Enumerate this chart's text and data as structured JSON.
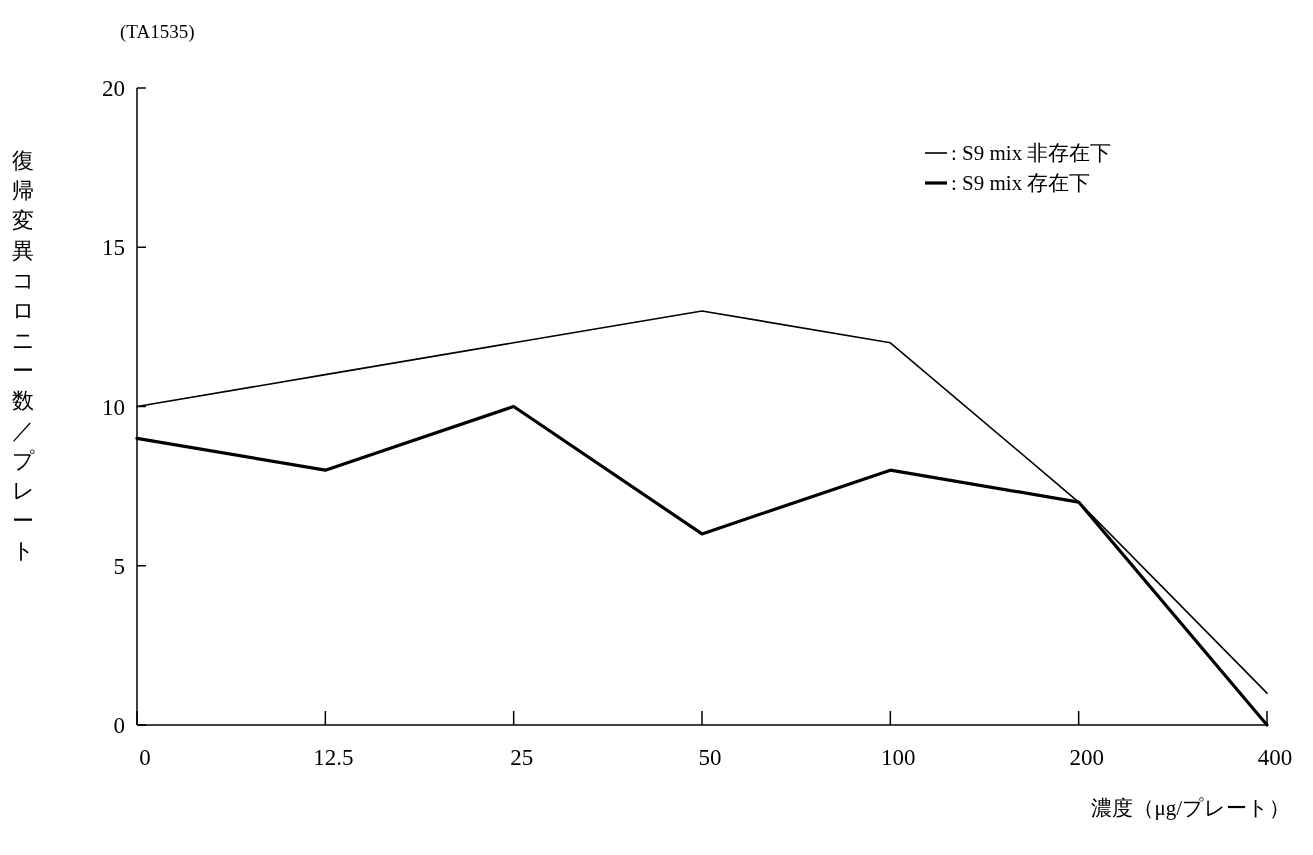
{
  "chart_data": {
    "type": "line",
    "title": "(TA1535)",
    "xlabel": "濃度（μg/プレート）",
    "ylabel": "復帰変異コロニー数／プレート",
    "categories": [
      "0",
      "12.5",
      "25",
      "50",
      "100",
      "200",
      "400"
    ],
    "ylim": [
      0,
      20
    ],
    "yticks": [
      0,
      5,
      10,
      15,
      20
    ],
    "legend": "top right",
    "series": [
      {
        "name": ": S9 mix 非存在下",
        "color": "#000000",
        "values": [
          10,
          11,
          12,
          13,
          12,
          7,
          1
        ]
      },
      {
        "name": ": S9 mix 存在下",
        "color": "#000000",
        "values": [
          9,
          8,
          10,
          6,
          8,
          7,
          0
        ]
      }
    ]
  }
}
